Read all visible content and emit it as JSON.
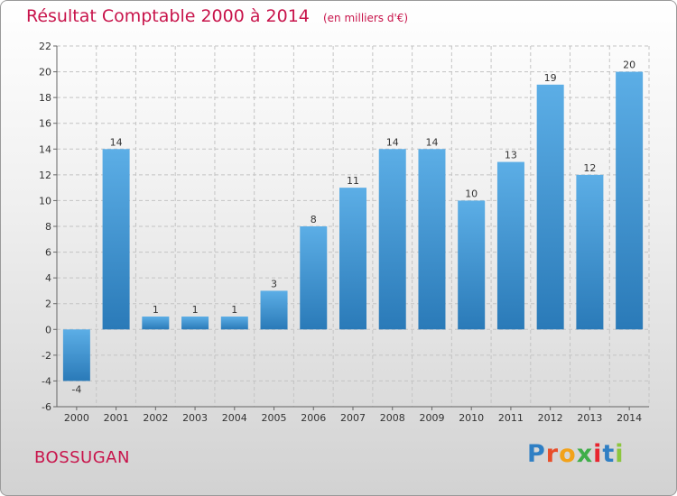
{
  "header": {
    "title": "Résultat Comptable 2000 à 2014",
    "subtitle": "(en milliers d'€)"
  },
  "footer": {
    "place": "BOSSUGAN",
    "brand": "Proxiti"
  },
  "colors": {
    "title": "#c8144b",
    "bar_light": "#5caee6",
    "bar_dark": "#2a7ab8",
    "brand_letters": [
      "#2f7fc4",
      "#e84e2a",
      "#f2a21a",
      "#3fae49",
      "#e8242f",
      "#2f7fc4",
      "#8cc63e"
    ]
  },
  "chart_data": {
    "type": "bar",
    "title": "Résultat Comptable 2000 à 2014",
    "subtitle": "(en milliers d'€)",
    "xlabel": "",
    "ylabel": "",
    "categories": [
      "2000",
      "2001",
      "2002",
      "2003",
      "2004",
      "2005",
      "2006",
      "2007",
      "2008",
      "2009",
      "2010",
      "2011",
      "2012",
      "2013",
      "2014"
    ],
    "values": [
      -4,
      14,
      1,
      1,
      1,
      3,
      8,
      11,
      14,
      14,
      10,
      13,
      19,
      12,
      20
    ],
    "ylim": [
      -6,
      22
    ],
    "yticks": [
      -6,
      -4,
      -2,
      0,
      2,
      4,
      6,
      8,
      10,
      12,
      14,
      16,
      18,
      20,
      22
    ],
    "grid": true,
    "data_labels": true
  }
}
